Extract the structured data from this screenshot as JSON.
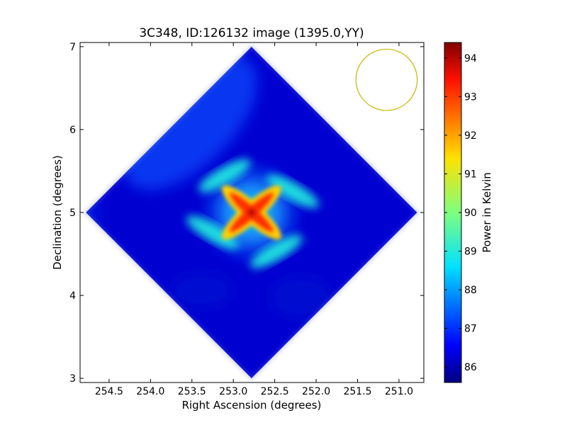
{
  "chart_data": {
    "type": "heatmap",
    "title": "3C348, ID:126132 image (1395.0,YY)",
    "xlabel": "Right Ascension (degrees)",
    "ylabel": "Declination (degrees)",
    "xlim": [
      254.85,
      250.7
    ],
    "ylim": [
      2.95,
      7.05
    ],
    "x_ticks": [
      254.5,
      254.0,
      253.5,
      253.0,
      252.5,
      252.0,
      251.5,
      251.0
    ],
    "x_tick_labels": [
      "254.5",
      "254.0",
      "253.5",
      "253.0",
      "252.5",
      "252.0",
      "251.5",
      "251.0"
    ],
    "y_ticks": [
      3,
      4,
      5,
      6,
      7
    ],
    "y_tick_labels": [
      "3",
      "4",
      "5",
      "6",
      "7"
    ],
    "colorbar": {
      "label": "Power in Kelvin",
      "colormap": "jet",
      "vmin": 85.6,
      "vmax": 94.4,
      "ticks": [
        86,
        87,
        88,
        89,
        90,
        91,
        92,
        93,
        94
      ],
      "tick_labels": [
        "86",
        "87",
        "88",
        "89",
        "90",
        "91",
        "92",
        "93",
        "94"
      ]
    },
    "map": {
      "shape": "diamond",
      "center": [
        252.78,
        5.0
      ],
      "ra_extent": [
        250.78,
        254.78
      ],
      "dec_extent": [
        3.0,
        7.0
      ],
      "background_value": 86.3,
      "peak_value": 93.8,
      "peak_position": [
        252.78,
        5.0
      ]
    },
    "beam": {
      "center": [
        251.15,
        6.6
      ],
      "radius_deg": 0.37,
      "color": "#c8b400"
    },
    "grid": false
  }
}
